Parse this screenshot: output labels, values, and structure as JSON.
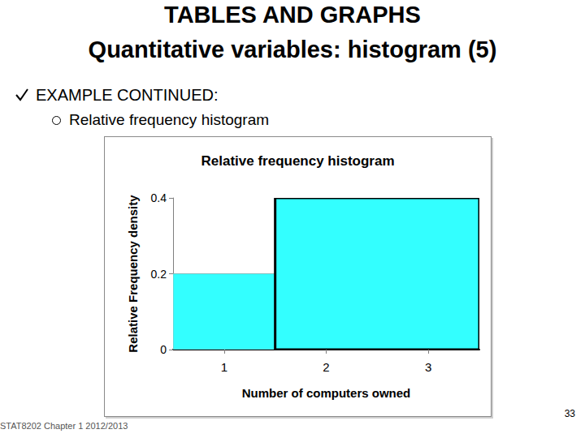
{
  "slide": {
    "title": "TABLES AND GRAPHS",
    "subtitle": "Quantitative variables: histogram (5)",
    "bullet": "EXAMPLE CONTINUED:",
    "sub_bullet": "Relative frequency histogram",
    "footer": "STAT8202 Chapter 1 2012/2013",
    "page": "33"
  },
  "chart_data": {
    "type": "histogram",
    "title": "Relative frequency histogram",
    "x_label": "Number of computers owned",
    "y_label": "Relative Frequency density",
    "bins": [
      0.5,
      1.5,
      3.5
    ],
    "values": [
      0.2,
      0.4
    ],
    "color": "#33ffff",
    "xlim": [
      0.5,
      3.5
    ],
    "xticks": [
      1,
      2,
      3
    ],
    "ylim": [
      0,
      0.4
    ],
    "yticks": [
      0,
      0.2,
      0.4
    ],
    "grid": false
  }
}
